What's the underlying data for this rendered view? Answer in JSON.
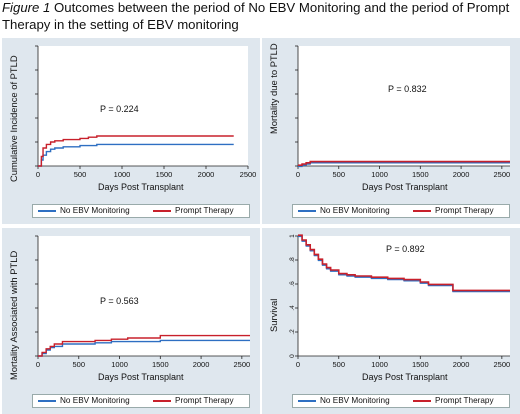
{
  "caption": {
    "figure_label": "Figure 1",
    "text": " Outcomes between the period of No EBV Monitoring and the period of Prompt Therapy in the setting of EBV monitoring"
  },
  "colors": {
    "no_monitoring": "#2e6fc2",
    "prompt_therapy": "#c8202b",
    "panel_bg": "#dfe7ee",
    "plot_bg": "#ffffff"
  },
  "chart_data": [
    {
      "type": "line",
      "title": "",
      "xlabel": "Days Post Transplant",
      "ylabel": "Cumulative Incidence of PTLD",
      "annotation": "P = 0.224",
      "xlim": [
        0,
        2500
      ],
      "xticks": [
        0,
        500,
        1000,
        1500,
        2000,
        2500
      ],
      "ylim": [
        0,
        1
      ],
      "grid": false,
      "legend_position": "bottom",
      "series": [
        {
          "name": "No EBV Monitoring",
          "step": true,
          "x": [
            0,
            40,
            60,
            100,
            150,
            200,
            300,
            500,
            600,
            700,
            1000,
            1500,
            2000,
            2330
          ],
          "y": [
            0,
            0.05,
            0.09,
            0.12,
            0.14,
            0.15,
            0.16,
            0.17,
            0.17,
            0.18,
            0.18,
            0.18,
            0.18,
            0.18
          ]
        },
        {
          "name": "Prompt Therapy",
          "step": true,
          "x": [
            0,
            40,
            60,
            100,
            150,
            200,
            300,
            500,
            600,
            700,
            1000,
            1500,
            2000,
            2330
          ],
          "y": [
            0,
            0.08,
            0.15,
            0.18,
            0.2,
            0.21,
            0.22,
            0.23,
            0.24,
            0.25,
            0.25,
            0.25,
            0.25,
            0.25
          ]
        }
      ]
    },
    {
      "type": "line",
      "title": "",
      "xlabel": "Days Post Transplant",
      "ylabel": "Mortality due to PTLD",
      "annotation": "P = 0.832",
      "xlim": [
        0,
        2600
      ],
      "xticks": [
        0,
        500,
        1000,
        1500,
        2000,
        2500
      ],
      "ylim": [
        0,
        1
      ],
      "grid": false,
      "legend_position": "bottom",
      "series": [
        {
          "name": "No EBV Monitoring",
          "step": true,
          "x": [
            0,
            50,
            100,
            150,
            200,
            2600
          ],
          "y": [
            0,
            0.01,
            0.02,
            0.03,
            0.03,
            0.03
          ]
        },
        {
          "name": "Prompt Therapy",
          "step": true,
          "x": [
            0,
            50,
            100,
            150,
            200,
            2600
          ],
          "y": [
            0,
            0.01,
            0.02,
            0.03,
            0.03,
            0.03
          ]
        }
      ]
    },
    {
      "type": "line",
      "title": "",
      "xlabel": "Days Post Transplant",
      "ylabel": "Mortality Associated with PTLD",
      "annotation": "P = 0.563",
      "xlim": [
        0,
        2600
      ],
      "xticks": [
        0,
        500,
        1000,
        1500,
        2000,
        2500
      ],
      "ylim": [
        0,
        1
      ],
      "grid": false,
      "legend_position": "bottom",
      "series": [
        {
          "name": "No EBV Monitoring",
          "step": true,
          "x": [
            0,
            50,
            100,
            150,
            200,
            300,
            500,
            700,
            900,
            1100,
            1500,
            2600
          ],
          "y": [
            0,
            0.02,
            0.05,
            0.07,
            0.08,
            0.1,
            0.1,
            0.11,
            0.12,
            0.12,
            0.13,
            0.13
          ]
        },
        {
          "name": "Prompt Therapy",
          "step": true,
          "x": [
            0,
            50,
            100,
            150,
            200,
            300,
            500,
            700,
            900,
            1100,
            1500,
            2600
          ],
          "y": [
            0,
            0.03,
            0.06,
            0.08,
            0.1,
            0.12,
            0.12,
            0.13,
            0.14,
            0.15,
            0.17,
            0.17
          ]
        }
      ]
    },
    {
      "type": "line",
      "title": "",
      "xlabel": "Days Post Transplant",
      "ylabel": "Survival",
      "annotation": "P = 0.892",
      "xlim": [
        0,
        2600
      ],
      "xticks": [
        0,
        500,
        1000,
        1500,
        2000,
        2500
      ],
      "yticks": [
        0,
        0.2,
        0.4,
        0.6,
        0.8,
        1
      ],
      "ylim": [
        0,
        1
      ],
      "grid": false,
      "legend_position": "bottom",
      "series": [
        {
          "name": "No EBV Monitoring",
          "step": true,
          "x": [
            0,
            50,
            100,
            150,
            200,
            250,
            300,
            350,
            400,
            500,
            600,
            700,
            900,
            1100,
            1300,
            1500,
            1600,
            1900,
            2600
          ],
          "y": [
            1,
            0.96,
            0.92,
            0.88,
            0.84,
            0.8,
            0.76,
            0.73,
            0.71,
            0.68,
            0.67,
            0.66,
            0.65,
            0.64,
            0.63,
            0.61,
            0.59,
            0.54,
            0.54
          ]
        },
        {
          "name": "Prompt Therapy",
          "step": true,
          "x": [
            0,
            50,
            100,
            150,
            200,
            250,
            300,
            350,
            400,
            500,
            600,
            700,
            900,
            1100,
            1300,
            1500,
            1600,
            1900,
            2600
          ],
          "y": [
            1,
            0.96,
            0.92,
            0.88,
            0.84,
            0.8,
            0.76,
            0.73,
            0.71,
            0.68,
            0.67,
            0.66,
            0.65,
            0.64,
            0.63,
            0.61,
            0.59,
            0.54,
            0.54
          ]
        }
      ]
    }
  ]
}
